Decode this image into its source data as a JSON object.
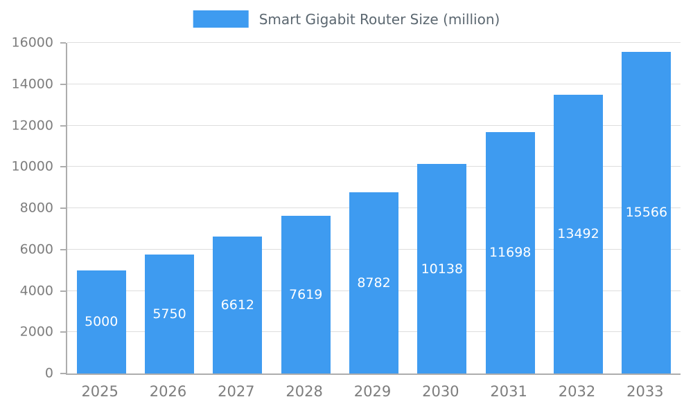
{
  "chart_data": {
    "type": "bar",
    "title": "Smart Gigabit Router Size (million)",
    "legend": {
      "label": "Smart Gigabit Router Size (million)",
      "position": "top-center"
    },
    "categories": [
      "2025",
      "2026",
      "2027",
      "2028",
      "2029",
      "2030",
      "2031",
      "2032",
      "2033"
    ],
    "values": [
      5000,
      5750,
      6612,
      7619,
      8782,
      10138,
      11698,
      13492,
      15566
    ],
    "xlabel": "",
    "ylabel": "",
    "ylim": [
      0,
      16000
    ],
    "ytick_step": 2000,
    "y_tick_labels": [
      "0",
      "2000",
      "4000",
      "6000",
      "8000",
      "10000",
      "12000",
      "14000",
      "16000"
    ],
    "grid": true,
    "value_labels_shown": true,
    "colors": {
      "bar": "#3E9BF0",
      "value_label": "#FFFFFF",
      "axis_label": "#7D7D7D",
      "title": "#5B6770",
      "gridline": "#DEDEDE",
      "axis_line": "#ADADAD"
    }
  }
}
